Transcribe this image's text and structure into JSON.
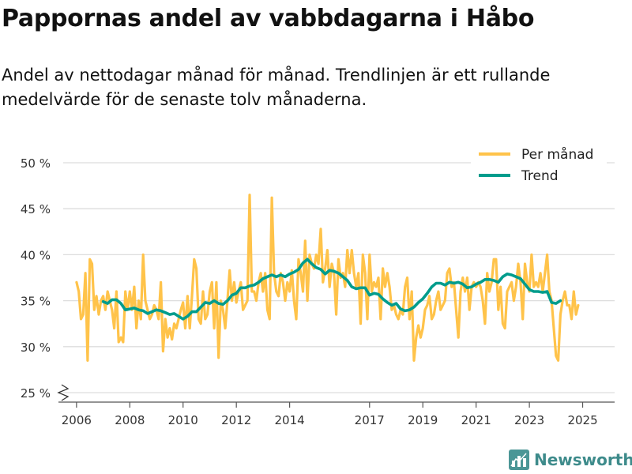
{
  "header": {
    "title": "Pappornas andel av vabbdagarna i Håbo",
    "subtitle": "Andel av nettodagar månad för månad. Trendlinjen är ett rullande medelvärde för de senaste tolv månaderna."
  },
  "brand": {
    "name": "Newsworthy",
    "icon": "bar-chart-logo-icon"
  },
  "colors": {
    "monthly": "#FFC34A",
    "trend": "#009C8C",
    "grid": "#dddddd",
    "axis": "#555555"
  },
  "chart_data": {
    "type": "line",
    "ylim": [
      25,
      50
    ],
    "y_ticks": [
      25,
      30,
      35,
      40,
      45,
      50
    ],
    "y_tick_labels": [
      "25 %",
      "30 %",
      "35 %",
      "40 %",
      "45 %",
      "50 %"
    ],
    "x_range": [
      2005.5,
      2026.2
    ],
    "x_ticks": [
      2006,
      2008,
      2010,
      2012,
      2014,
      2017,
      2019,
      2021,
      2023,
      2025
    ],
    "x_tick_labels": [
      "2006",
      "2008",
      "2010",
      "2012",
      "2014",
      "2017",
      "2019",
      "2021",
      "2023",
      "2025"
    ],
    "legend": {
      "position": "top-right",
      "entries": [
        "Per månad",
        "Trend"
      ]
    },
    "series": [
      {
        "name": "Per månad",
        "start": 2006.0,
        "step": 0.0833333,
        "values": [
          37,
          36,
          33,
          33.5,
          38,
          28.5,
          39.5,
          39,
          34,
          35.5,
          33.5,
          35,
          35.5,
          34,
          36,
          35,
          34,
          32,
          36,
          30.5,
          31,
          30.5,
          36,
          34,
          36,
          34,
          36.5,
          32,
          35,
          33,
          40,
          35,
          34,
          33,
          33.5,
          34.5,
          34,
          33,
          37,
          29.5,
          33,
          31,
          32,
          30.8,
          32.5,
          32,
          33,
          34,
          34.8,
          32,
          35.5,
          32,
          35.5,
          39.5,
          38.5,
          33,
          32.5,
          36,
          33,
          33.5,
          36,
          37,
          32,
          37,
          28.8,
          35,
          34,
          32,
          35,
          38.3,
          35,
          37,
          34.8,
          36,
          37,
          34,
          34.5,
          35,
          46.5,
          36,
          36,
          35,
          37,
          38,
          36,
          38,
          34,
          33,
          46.2,
          38,
          36,
          35.5,
          38,
          37,
          35,
          37,
          36,
          38.3,
          35,
          33,
          39.5,
          38,
          36,
          41.5,
          35,
          40,
          39,
          38.5,
          40,
          39,
          42.8,
          37,
          38.5,
          40.5,
          36.5,
          39,
          38,
          33.5,
          39.5,
          37.5,
          38,
          36.5,
          40.5,
          38,
          40.5,
          38,
          36.5,
          38,
          32.5,
          40,
          38,
          33,
          40,
          36,
          37,
          36.5,
          37.5,
          33,
          38.5,
          36.5,
          38,
          36.5,
          34,
          34.5,
          33.5,
          33,
          34,
          33.5,
          36.5,
          37.5,
          33,
          36,
          28.5,
          31,
          32.3,
          31,
          32,
          34,
          34.5,
          35.5,
          33,
          33.5,
          35,
          36,
          34,
          34.5,
          35,
          38,
          38.5,
          36.5,
          37,
          34,
          31,
          36,
          37.5,
          36,
          37.5,
          34,
          36.5,
          37,
          36.5,
          37,
          36.5,
          35,
          32.5,
          38,
          36,
          37,
          39.5,
          39.5,
          34,
          36.5,
          32.5,
          32,
          36,
          36.5,
          37,
          35,
          36.5,
          39,
          37,
          33,
          39,
          37,
          36,
          40,
          36.5,
          37,
          36.5,
          38,
          36,
          38,
          40,
          36,
          35,
          32,
          29,
          28.5,
          33.5,
          35,
          36,
          34.5,
          34.5,
          33,
          36,
          33.5,
          34.5
        ]
      },
      {
        "name": "Trend",
        "start": 2007.0,
        "step": 0.1666667,
        "values": [
          34.9,
          34.7,
          35.1,
          35.1,
          34.7,
          34.0,
          34.1,
          34.2,
          34.0,
          33.9,
          33.6,
          33.8,
          34.0,
          33.9,
          33.7,
          33.5,
          33.6,
          33.3,
          33.0,
          33.3,
          33.8,
          33.8,
          34.3,
          34.8,
          34.7,
          35.0,
          34.7,
          34.6,
          35.0,
          35.6,
          35.8,
          36.4,
          36.4,
          36.6,
          36.7,
          37.0,
          37.4,
          37.6,
          37.8,
          37.6,
          37.8,
          37.6,
          37.9,
          38.1,
          38.4,
          39.1,
          39.5,
          39.0,
          38.6,
          38.4,
          37.9,
          38.3,
          38.2,
          38.0,
          37.6,
          37.2,
          36.5,
          36.3,
          36.4,
          36.4,
          35.6,
          35.8,
          35.7,
          35.2,
          34.8,
          34.5,
          34.7,
          34.1,
          33.9,
          34.0,
          34.3,
          34.8,
          35.2,
          35.8,
          36.5,
          36.9,
          36.9,
          36.7,
          37.0,
          36.9,
          37.0,
          36.8,
          36.4,
          36.5,
          36.8,
          37.0,
          37.3,
          37.3,
          37.2,
          37.0,
          37.6,
          37.9,
          37.8,
          37.6,
          37.4,
          36.8,
          36.2,
          36.0,
          36.0,
          35.9,
          36.0,
          34.8,
          34.7,
          35.0
        ]
      }
    ]
  }
}
